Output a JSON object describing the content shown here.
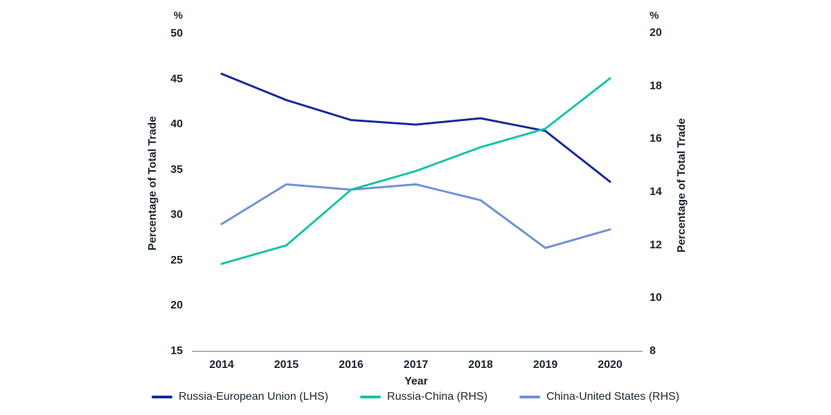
{
  "chart_data": {
    "type": "line",
    "x_categories": [
      "2014",
      "2015",
      "2016",
      "2017",
      "2018",
      "2019",
      "2020"
    ],
    "x_axis": {
      "title": "Year"
    },
    "left_axis": {
      "title": "Percentage of Total Trade",
      "unit": "%",
      "ticks": [
        50,
        45,
        40,
        35,
        30,
        25,
        20,
        15
      ],
      "min": 15,
      "max": 50
    },
    "right_axis": {
      "title": "Percentage of Total Trade",
      "unit": "%",
      "ticks": [
        20,
        18,
        16,
        14,
        12,
        10,
        8
      ],
      "min": 8,
      "max": 20
    },
    "series": [
      {
        "name": "Russia-European Union (LHS)",
        "axis": "left",
        "color": "#15289d",
        "values": [
          45.6,
          42.7,
          40.5,
          40.0,
          40.7,
          39.3,
          33.7
        ]
      },
      {
        "name": "Russia-China (RHS)",
        "axis": "right",
        "color": "#14c3a4",
        "values": [
          11.3,
          12.0,
          14.1,
          14.8,
          15.7,
          16.4,
          18.3
        ]
      },
      {
        "name": "China-United States (RHS)",
        "axis": "right",
        "color": "#7090d8",
        "values": [
          12.8,
          14.3,
          14.1,
          14.3,
          13.7,
          11.9,
          12.6
        ]
      }
    ],
    "draw_order": [
      0,
      2,
      1
    ],
    "legend_position": "bottom",
    "grid": false,
    "axis_line_color": "#b3b3b3",
    "text_color": "#1a2430",
    "background": "#ffffff"
  }
}
